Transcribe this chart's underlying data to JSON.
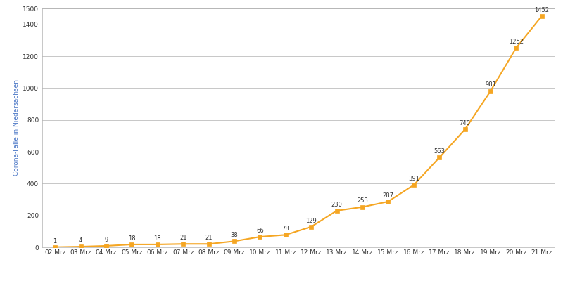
{
  "categories": [
    "02.Mrz",
    "03.Mrz",
    "04.Mrz",
    "05.Mrz",
    "06.Mrz",
    "07.Mrz",
    "08.Mrz",
    "09.Mrz",
    "10.Mrz",
    "11.Mrz",
    "12.Mrz",
    "13.Mrz",
    "14.Mrz",
    "15.Mrz",
    "16.Mrz",
    "17.Mrz",
    "18.Mrz",
    "19.Mrz",
    "20.Mrz",
    "21.Mrz"
  ],
  "values": [
    1,
    4,
    9,
    18,
    18,
    21,
    21,
    38,
    66,
    78,
    129,
    230,
    253,
    287,
    391,
    563,
    740,
    981,
    1252,
    1452
  ],
  "line_color": "#f5a623",
  "marker_color": "#f5a623",
  "marker_style": "s",
  "marker_size": 4,
  "line_width": 1.5,
  "ylabel": "Corona-Fälle in Niedersachsen",
  "ylabel_fontsize": 6.5,
  "ylabel_color": "#4472c4",
  "xlabel": "",
  "ylim": [
    0,
    1500
  ],
  "yticks": [
    0,
    200,
    400,
    600,
    800,
    1000,
    1200,
    1400,
    1500
  ],
  "grid_color": "#b0b0b0",
  "grid_linewidth": 0.5,
  "tick_fontsize": 6.5,
  "annotation_fontsize": 6,
  "background_color": "#ffffff",
  "label_color": "#333333",
  "border_color": "#b0b0b0"
}
